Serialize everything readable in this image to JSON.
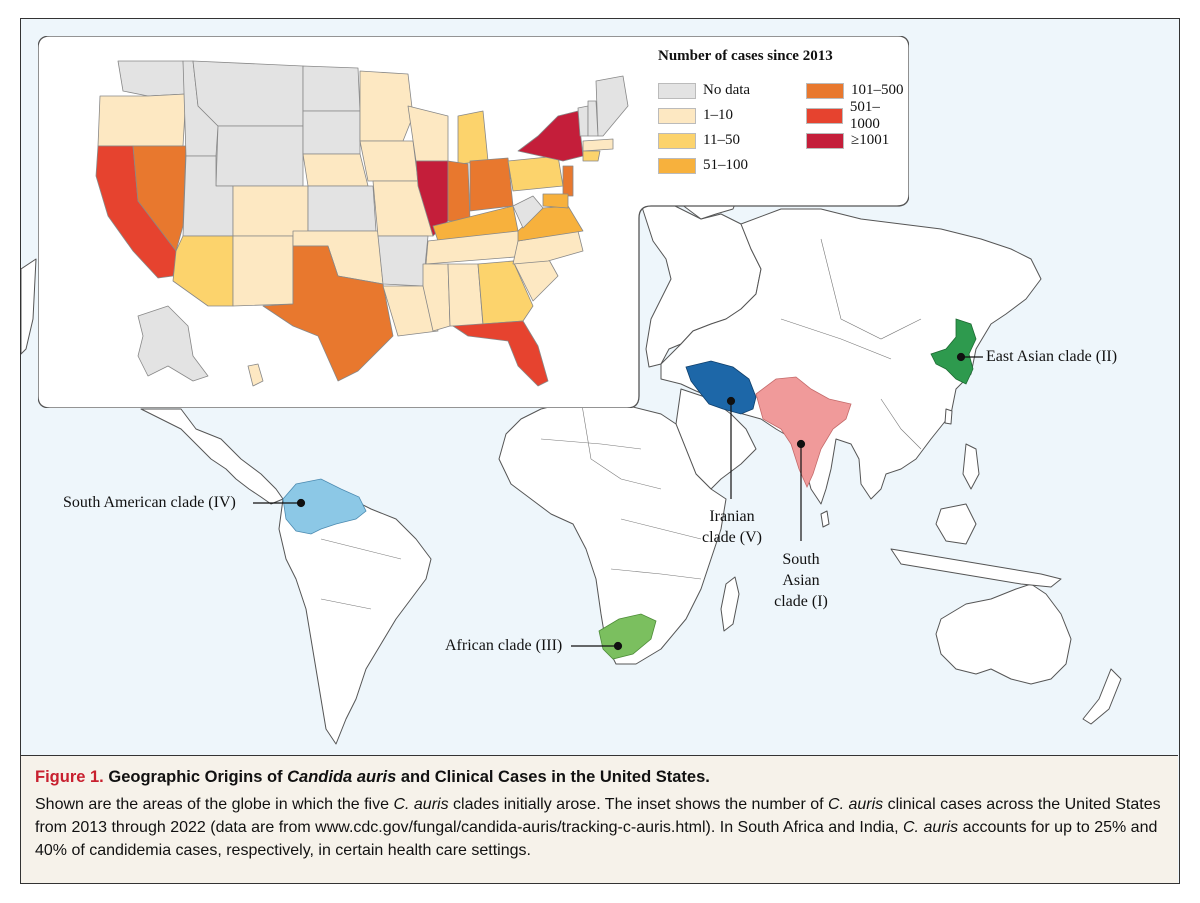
{
  "legend": {
    "title": "Number of cases since 2013",
    "items": [
      {
        "label": "No data",
        "color": "#e3e3e3"
      },
      {
        "label": "1–10",
        "color": "#fde8c2"
      },
      {
        "label": "11–50",
        "color": "#fcd36c"
      },
      {
        "label": "51–100",
        "color": "#f7b13d"
      },
      {
        "label": "101–500",
        "color": "#e8782e"
      },
      {
        "label": "501–1000",
        "color": "#e6432f"
      },
      {
        "label": "≥1001",
        "color": "#c41e3a"
      }
    ]
  },
  "clades": {
    "east_asian": {
      "label": "East Asian clade (II)",
      "color": "#2e9a4e"
    },
    "south_american": {
      "label": "South American clade (IV)",
      "color": "#8cc8e6"
    },
    "iranian": {
      "label_line1": "Iranian",
      "label_line2": "clade (V)",
      "color": "#1d67a8"
    },
    "south_asian": {
      "label_line1": "South",
      "label_line2": "Asian",
      "label_line3": "clade (I)",
      "color": "#f09a9a"
    },
    "african": {
      "label": "African clade (III)",
      "color": "#7bbf5f"
    }
  },
  "caption": {
    "figure_label": "Figure 1.",
    "title_part1": "Geographic Origins of ",
    "title_italic": "Candida auris",
    "title_part2": " and Clinical Cases in the United States.",
    "body_part1": "Shown are the areas of the globe in which the five ",
    "body_italic1": "C. auris",
    "body_part2": " clades initially arose. The inset shows the number of ",
    "body_italic2": "C. auris",
    "body_part3": " clinical cases across the United States from 2013 through 2022 (data are from www.cdc.gov/fungal/candida-auris/tracking-c-auris.html). In South Africa and India, ",
    "body_italic3": "C. auris",
    "body_part4": " accounts for up to 25% and 40% of candidemia cases, respectively, in certain health care settings."
  }
}
